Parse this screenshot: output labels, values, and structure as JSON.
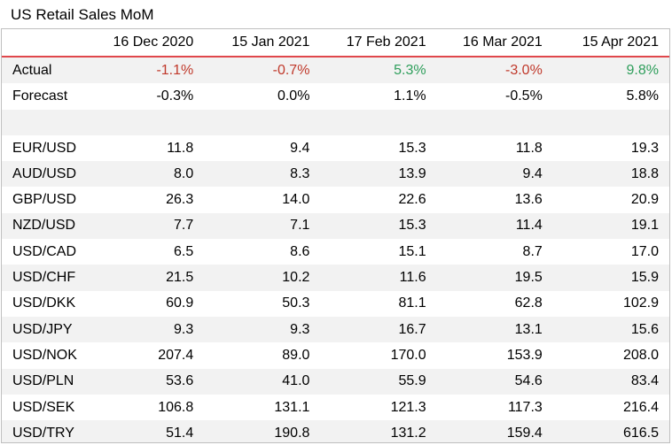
{
  "title": "US Retail Sales MoM",
  "columns": [
    "16 Dec 2020",
    "15 Jan 2021",
    "17 Feb 2021",
    "16 Mar 2021",
    "15 Apr 2021"
  ],
  "summary_rows": [
    {
      "label": "Actual",
      "values": [
        "-1.1%",
        "-0.7%",
        "5.3%",
        "-3.0%",
        "9.8%"
      ],
      "tones": [
        "neg",
        "neg",
        "pos",
        "neg",
        "pos"
      ]
    },
    {
      "label": "Forecast",
      "values": [
        "-0.3%",
        "0.0%",
        "1.1%",
        "-0.5%",
        "5.8%"
      ]
    }
  ],
  "pair_rows": [
    {
      "label": "EUR/USD",
      "values": [
        "11.8",
        "9.4",
        "15.3",
        "11.8",
        "19.3"
      ]
    },
    {
      "label": "AUD/USD",
      "values": [
        "8.0",
        "8.3",
        "13.9",
        "9.4",
        "18.8"
      ]
    },
    {
      "label": "GBP/USD",
      "values": [
        "26.3",
        "14.0",
        "22.6",
        "13.6",
        "20.9"
      ]
    },
    {
      "label": "NZD/USD",
      "values": [
        "7.7",
        "7.1",
        "15.3",
        "11.4",
        "19.1"
      ]
    },
    {
      "label": "USD/CAD",
      "values": [
        "6.5",
        "8.6",
        "15.1",
        "8.7",
        "17.0"
      ]
    },
    {
      "label": "USD/CHF",
      "values": [
        "21.5",
        "10.2",
        "11.6",
        "19.5",
        "15.9"
      ]
    },
    {
      "label": "USD/DKK",
      "values": [
        "60.9",
        "50.3",
        "81.1",
        "62.8",
        "102.9"
      ]
    },
    {
      "label": "USD/JPY",
      "values": [
        "9.3",
        "9.3",
        "16.7",
        "13.1",
        "15.6"
      ]
    },
    {
      "label": "USD/NOK",
      "values": [
        "207.4",
        "89.0",
        "170.0",
        "153.9",
        "208.0"
      ]
    },
    {
      "label": "USD/PLN",
      "values": [
        "53.6",
        "41.0",
        "55.9",
        "54.6",
        "83.4"
      ]
    },
    {
      "label": "USD/SEK",
      "values": [
        "106.8",
        "131.1",
        "121.3",
        "117.3",
        "216.4"
      ]
    },
    {
      "label": "USD/TRY",
      "values": [
        "51.4",
        "190.8",
        "131.2",
        "159.4",
        "616.5"
      ]
    }
  ],
  "colors": {
    "negative": "#c0392b",
    "positive": "#2e9e5b",
    "header_rule": "#e0474c",
    "row_shade": "#f2f2f2"
  }
}
